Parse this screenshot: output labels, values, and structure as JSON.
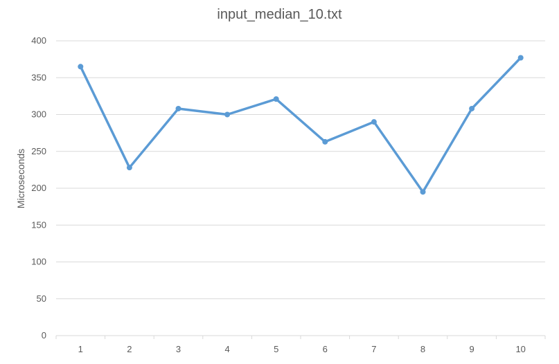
{
  "chart_data": {
    "type": "line",
    "title": "input_median_10.txt",
    "xlabel": "",
    "ylabel": "Microseconds",
    "categories": [
      "1",
      "2",
      "3",
      "4",
      "5",
      "6",
      "7",
      "8",
      "9",
      "10"
    ],
    "series": [
      {
        "values": [
          365,
          228,
          308,
          300,
          321,
          263,
          290,
          195,
          308,
          377
        ],
        "color": "#5b9bd5"
      }
    ],
    "ylim": [
      0,
      400
    ],
    "yticks": [
      0,
      50,
      100,
      150,
      200,
      250,
      300,
      350,
      400
    ],
    "grid": true,
    "legend": "none"
  }
}
